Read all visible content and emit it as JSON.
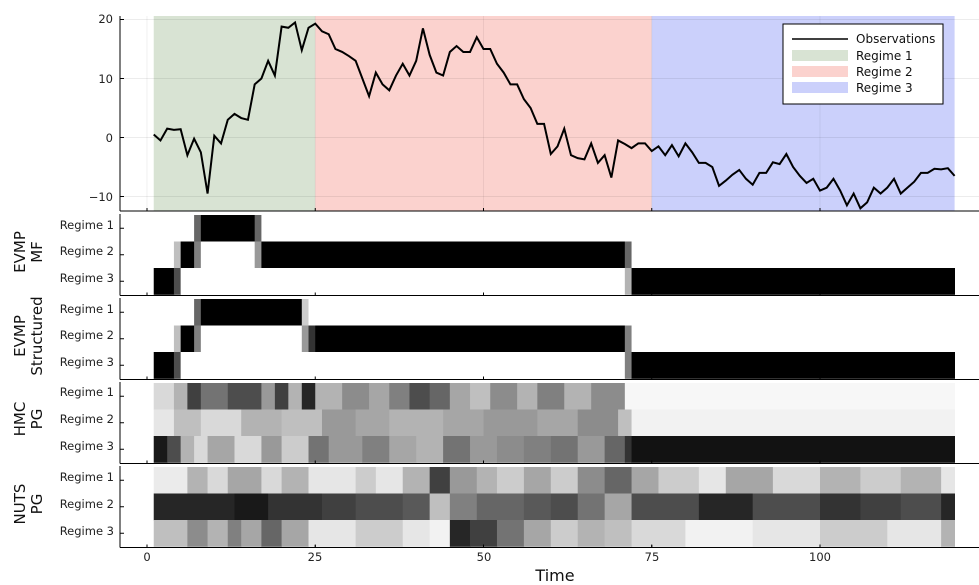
{
  "chart_data": [
    {
      "type": "line",
      "panel": "top",
      "x_range": [
        1,
        120
      ],
      "ylim": [
        -12,
        20
      ],
      "yticks": [
        -10,
        0,
        10,
        20
      ],
      "xticks": [
        0,
        25,
        50,
        75,
        100
      ],
      "grid": true,
      "legend_position": "top-right",
      "regimes": [
        {
          "name": "Regime 1",
          "start": 1,
          "end": 25,
          "color": "#d8e3d3"
        },
        {
          "name": "Regime 2",
          "start": 25,
          "end": 75,
          "color": "#fbd2ce"
        },
        {
          "name": "Regime 3",
          "start": 75,
          "end": 120,
          "color": "#cbd0fb"
        }
      ],
      "series": [
        {
          "name": "Observations",
          "color": "#000000",
          "x": [
            1,
            2,
            3,
            4,
            5,
            6,
            7,
            8,
            9,
            10,
            11,
            12,
            13,
            14,
            15,
            16,
            17,
            18,
            19,
            20,
            21,
            22,
            23,
            24,
            25,
            26,
            27,
            28,
            29,
            30,
            31,
            32,
            33,
            34,
            35,
            36,
            37,
            38,
            39,
            40,
            41,
            42,
            43,
            44,
            45,
            46,
            47,
            48,
            49,
            50,
            51,
            52,
            53,
            54,
            55,
            56,
            57,
            58,
            59,
            60,
            61,
            62,
            63,
            64,
            65,
            66,
            67,
            68,
            69,
            70,
            71,
            72,
            73,
            74,
            75,
            76,
            77,
            78,
            79,
            80,
            81,
            82,
            83,
            84,
            85,
            86,
            87,
            88,
            89,
            90,
            91,
            92,
            93,
            94,
            95,
            96,
            97,
            98,
            99,
            100,
            101,
            102,
            103,
            104,
            105,
            106,
            107,
            108,
            109,
            110,
            111,
            112,
            113,
            114,
            115,
            116,
            117,
            118,
            119,
            120
          ],
          "values": [
            0.5,
            -0.5,
            1.5,
            1.3,
            1.4,
            -3,
            -0.2,
            -2.5,
            -9.5,
            0.3,
            -1,
            3,
            4,
            3.3,
            3,
            9,
            10,
            13,
            10.5,
            18.8,
            18.6,
            19.5,
            14.8,
            18.6,
            19.3,
            18,
            17.5,
            15,
            14.5,
            13.8,
            13,
            10,
            7,
            11,
            9,
            8,
            10.5,
            12.5,
            10.5,
            13,
            18.5,
            14,
            11,
            10.5,
            14.5,
            15.5,
            14.5,
            14.5,
            17,
            15,
            15,
            12.5,
            11,
            9,
            9,
            6.5,
            5,
            2.3,
            2.3,
            -2.8,
            -1.5,
            1.5,
            -3,
            -3.5,
            -3.7,
            -1,
            -4.3,
            -3,
            -6.8,
            -0.5,
            -1.1,
            -1.8,
            -1,
            -1,
            -2.3,
            -1.5,
            -3,
            -1.3,
            -3.2,
            -1,
            -2.5,
            -4.3,
            -4.3,
            -5,
            -8.2,
            -7.3,
            -6.3,
            -5.5,
            -7,
            -8,
            -6,
            -6,
            -4.2,
            -4.5,
            -2.8,
            -5,
            -6.5,
            -7.7,
            -7,
            -9,
            -8.5,
            -7,
            -9,
            -11.5,
            -9.5,
            -12,
            -11,
            -8.5,
            -9.5,
            -8.5,
            -7,
            -9.5,
            -8.5,
            -7.5,
            -6,
            -6,
            -5.3,
            -5.4,
            -5.2,
            -6.5
          ]
        }
      ]
    },
    {
      "type": "heatmap",
      "panel": "EVMP MF",
      "panel_label": [
        "EVMP",
        "MF"
      ],
      "x_range": [
        1,
        120
      ],
      "rows": [
        "Regime 1",
        "Regime 2",
        "Regime 3"
      ],
      "row_segments": [
        [
          [
            1,
            7,
            0
          ],
          [
            7,
            8,
            0.6
          ],
          [
            8,
            16,
            1
          ],
          [
            16,
            17,
            0.6
          ],
          [
            17,
            120,
            0
          ]
        ],
        [
          [
            1,
            4,
            0
          ],
          [
            4,
            5,
            0.25
          ],
          [
            5,
            7,
            1
          ],
          [
            7,
            8,
            0.5
          ],
          [
            8,
            16,
            0
          ],
          [
            16,
            17,
            0.4
          ],
          [
            17,
            71,
            1
          ],
          [
            71,
            72,
            0.6
          ],
          [
            72,
            120,
            0
          ]
        ],
        [
          [
            1,
            4,
            1
          ],
          [
            4,
            5,
            0.7
          ],
          [
            5,
            71,
            0
          ],
          [
            71,
            72,
            0.3
          ],
          [
            72,
            120,
            1
          ]
        ]
      ]
    },
    {
      "type": "heatmap",
      "panel": "EVMP Structured",
      "panel_label": [
        "EVMP",
        "Structured"
      ],
      "x_range": [
        1,
        120
      ],
      "rows": [
        "Regime 1",
        "Regime 2",
        "Regime 3"
      ],
      "row_segments": [
        [
          [
            1,
            7,
            0
          ],
          [
            7,
            8,
            0.6
          ],
          [
            8,
            23,
            1
          ],
          [
            23,
            24,
            0.2
          ],
          [
            24,
            120,
            0
          ]
        ],
        [
          [
            1,
            4,
            0
          ],
          [
            4,
            5,
            0.25
          ],
          [
            5,
            7,
            1
          ],
          [
            7,
            8,
            0.5
          ],
          [
            8,
            23,
            0
          ],
          [
            23,
            24,
            0.4
          ],
          [
            24,
            25,
            0.8
          ],
          [
            25,
            71,
            1
          ],
          [
            71,
            72,
            0.5
          ],
          [
            72,
            120,
            0
          ]
        ],
        [
          [
            1,
            4,
            1
          ],
          [
            4,
            5,
            0.7
          ],
          [
            5,
            71,
            0
          ],
          [
            71,
            72,
            0.5
          ],
          [
            72,
            120,
            1
          ]
        ]
      ]
    },
    {
      "type": "heatmap",
      "panel": "HMC PG",
      "panel_label": [
        "HMC",
        "PG"
      ],
      "x_range": [
        1,
        120
      ],
      "rows": [
        "Regime 1",
        "Regime 2",
        "Regime 3"
      ],
      "row_segments": [
        [
          [
            1,
            4,
            0.15
          ],
          [
            4,
            6,
            0.3
          ],
          [
            6,
            8,
            0.75
          ],
          [
            8,
            12,
            0.55
          ],
          [
            12,
            17,
            0.7
          ],
          [
            17,
            19,
            0.4
          ],
          [
            19,
            21,
            0.75
          ],
          [
            21,
            23,
            0.3
          ],
          [
            23,
            25,
            0.85
          ],
          [
            25,
            29,
            0.3
          ],
          [
            29,
            33,
            0.45
          ],
          [
            33,
            36,
            0.35
          ],
          [
            36,
            39,
            0.5
          ],
          [
            39,
            42,
            0.7
          ],
          [
            42,
            45,
            0.6
          ],
          [
            45,
            48,
            0.35
          ],
          [
            48,
            51,
            0.25
          ],
          [
            51,
            55,
            0.45
          ],
          [
            55,
            58,
            0.3
          ],
          [
            58,
            62,
            0.5
          ],
          [
            62,
            66,
            0.3
          ],
          [
            66,
            71,
            0.45
          ],
          [
            71,
            120,
            0.03
          ]
        ],
        [
          [
            1,
            4,
            0.1
          ],
          [
            4,
            8,
            0.25
          ],
          [
            8,
            14,
            0.15
          ],
          [
            14,
            20,
            0.3
          ],
          [
            20,
            26,
            0.25
          ],
          [
            26,
            31,
            0.4
          ],
          [
            31,
            36,
            0.35
          ],
          [
            36,
            44,
            0.3
          ],
          [
            44,
            50,
            0.35
          ],
          [
            50,
            58,
            0.4
          ],
          [
            58,
            64,
            0.35
          ],
          [
            64,
            70,
            0.45
          ],
          [
            70,
            72,
            0.25
          ],
          [
            72,
            120,
            0.05
          ]
        ],
        [
          [
            1,
            3,
            0.9
          ],
          [
            3,
            5,
            0.7
          ],
          [
            5,
            7,
            0.3
          ],
          [
            7,
            9,
            0.15
          ],
          [
            9,
            13,
            0.35
          ],
          [
            13,
            17,
            0.15
          ],
          [
            17,
            20,
            0.4
          ],
          [
            20,
            24,
            0.2
          ],
          [
            24,
            27,
            0.55
          ],
          [
            27,
            32,
            0.4
          ],
          [
            32,
            36,
            0.5
          ],
          [
            36,
            40,
            0.35
          ],
          [
            40,
            44,
            0.3
          ],
          [
            44,
            48,
            0.55
          ],
          [
            48,
            52,
            0.4
          ],
          [
            52,
            56,
            0.45
          ],
          [
            56,
            60,
            0.5
          ],
          [
            60,
            64,
            0.55
          ],
          [
            64,
            68,
            0.4
          ],
          [
            68,
            71,
            0.6
          ],
          [
            71,
            72,
            0.8
          ],
          [
            72,
            120,
            0.93
          ]
        ]
      ]
    },
    {
      "type": "heatmap",
      "panel": "NUTS PG",
      "panel_label": [
        "NUTS",
        "PG"
      ],
      "x_range": [
        1,
        120
      ],
      "rows": [
        "Regime 1",
        "Regime 2",
        "Regime 3"
      ],
      "row_segments": [
        [
          [
            1,
            6,
            0.08
          ],
          [
            6,
            9,
            0.3
          ],
          [
            9,
            12,
            0.15
          ],
          [
            12,
            17,
            0.35
          ],
          [
            17,
            20,
            0.15
          ],
          [
            20,
            24,
            0.3
          ],
          [
            24,
            31,
            0.1
          ],
          [
            31,
            34,
            0.2
          ],
          [
            34,
            38,
            0.1
          ],
          [
            38,
            42,
            0.3
          ],
          [
            42,
            45,
            0.75
          ],
          [
            45,
            49,
            0.4
          ],
          [
            49,
            52,
            0.3
          ],
          [
            52,
            56,
            0.2
          ],
          [
            56,
            60,
            0.35
          ],
          [
            60,
            64,
            0.2
          ],
          [
            64,
            68,
            0.45
          ],
          [
            68,
            72,
            0.6
          ],
          [
            72,
            76,
            0.35
          ],
          [
            76,
            82,
            0.2
          ],
          [
            82,
            86,
            0.1
          ],
          [
            86,
            93,
            0.35
          ],
          [
            93,
            100,
            0.15
          ],
          [
            100,
            106,
            0.3
          ],
          [
            106,
            112,
            0.2
          ],
          [
            112,
            118,
            0.3
          ],
          [
            118,
            120,
            0.1
          ]
        ],
        [
          [
            1,
            13,
            0.85
          ],
          [
            13,
            18,
            0.9
          ],
          [
            18,
            26,
            0.8
          ],
          [
            26,
            31,
            0.75
          ],
          [
            31,
            38,
            0.7
          ],
          [
            38,
            42,
            0.65
          ],
          [
            42,
            45,
            0.25
          ],
          [
            45,
            49,
            0.5
          ],
          [
            49,
            56,
            0.6
          ],
          [
            56,
            60,
            0.65
          ],
          [
            60,
            64,
            0.7
          ],
          [
            64,
            68,
            0.55
          ],
          [
            68,
            72,
            0.35
          ],
          [
            72,
            82,
            0.7
          ],
          [
            82,
            90,
            0.85
          ],
          [
            90,
            100,
            0.7
          ],
          [
            100,
            106,
            0.8
          ],
          [
            106,
            112,
            0.75
          ],
          [
            112,
            118,
            0.7
          ],
          [
            118,
            120,
            0.85
          ]
        ],
        [
          [
            1,
            6,
            0.25
          ],
          [
            6,
            9,
            0.45
          ],
          [
            9,
            12,
            0.3
          ],
          [
            12,
            14,
            0.5
          ],
          [
            14,
            17,
            0.35
          ],
          [
            17,
            20,
            0.6
          ],
          [
            20,
            24,
            0.35
          ],
          [
            24,
            31,
            0.1
          ],
          [
            31,
            38,
            0.2
          ],
          [
            38,
            42,
            0.1
          ],
          [
            42,
            45,
            0.05
          ],
          [
            45,
            48,
            0.85
          ],
          [
            48,
            52,
            0.75
          ],
          [
            52,
            56,
            0.55
          ],
          [
            56,
            60,
            0.35
          ],
          [
            60,
            64,
            0.2
          ],
          [
            64,
            68,
            0.3
          ],
          [
            68,
            72,
            0.25
          ],
          [
            72,
            80,
            0.15
          ],
          [
            80,
            90,
            0.05
          ],
          [
            90,
            100,
            0.1
          ],
          [
            100,
            110,
            0.2
          ],
          [
            110,
            118,
            0.1
          ],
          [
            118,
            120,
            0.3
          ]
        ]
      ]
    }
  ],
  "axes": {
    "xlabel": "Time",
    "xtick_labels": [
      "0",
      "25",
      "50",
      "75",
      "100"
    ],
    "ytick_labels": [
      "20",
      "10",
      "0",
      "−10"
    ]
  },
  "legend": {
    "observations": "Observations",
    "regime1": "Regime 1",
    "regime2": "Regime 2",
    "regime3": "Regime 3"
  },
  "panels": {
    "evmp_mf": {
      "line1": "EVMP",
      "line2": "MF"
    },
    "evmp_structured": {
      "line1": "EVMP",
      "line2": "Structured"
    },
    "hmc_pg": {
      "line1": "HMC",
      "line2": "PG"
    },
    "nuts_pg": {
      "line1": "NUTS",
      "line2": "PG"
    }
  },
  "row_labels": {
    "r1": "Regime 1",
    "r2": "Regime 2",
    "r3": "Regime 3"
  }
}
